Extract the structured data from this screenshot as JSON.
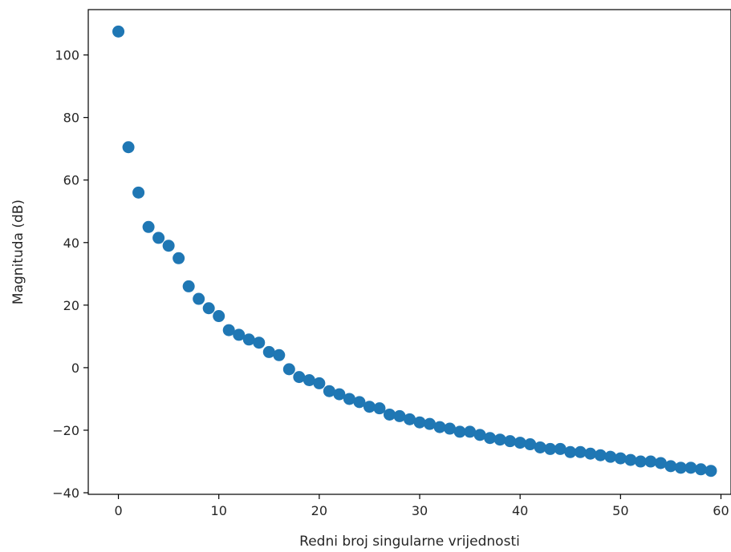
{
  "chart_data": {
    "type": "scatter",
    "xlabel": "Redni broj singularne vrijednosti",
    "ylabel": "Magnituda (dB)",
    "xlim": [
      -3,
      61
    ],
    "ylim": [
      -40.5,
      114.5
    ],
    "xticks": [
      0,
      10,
      20,
      30,
      40,
      50,
      60
    ],
    "yticks": [
      -40,
      -20,
      0,
      20,
      40,
      60,
      80,
      100
    ],
    "ytick_labels": [
      "−40",
      "−20",
      "0",
      "20",
      "40",
      "60",
      "80",
      "100"
    ],
    "marker_color": "#1f77b4",
    "grid": false,
    "series": [
      {
        "x": [
          0,
          1,
          2,
          3,
          4,
          5,
          6,
          7,
          8,
          9,
          10,
          11,
          12,
          13,
          14,
          15,
          16,
          17,
          18,
          19,
          20,
          21,
          22,
          23,
          24,
          25,
          26,
          27,
          28,
          29,
          30,
          31,
          32,
          33,
          34,
          35,
          36,
          37,
          38,
          39,
          40,
          41,
          42,
          43,
          44,
          45,
          46,
          47,
          48,
          49,
          50,
          51,
          52,
          53,
          54,
          55,
          56,
          57,
          58,
          59
        ],
        "y": [
          107.5,
          70.5,
          56.0,
          45.0,
          41.5,
          39.0,
          35.0,
          26.0,
          22.0,
          19.0,
          16.5,
          12.0,
          10.5,
          9.0,
          8.0,
          5.0,
          4.0,
          -0.5,
          -3.0,
          -4.0,
          -5.0,
          -7.5,
          -8.5,
          -10.0,
          -11.0,
          -12.5,
          -13.0,
          -15.0,
          -15.5,
          -16.5,
          -17.5,
          -18.0,
          -19.0,
          -19.5,
          -20.5,
          -20.5,
          -21.5,
          -22.5,
          -23.0,
          -23.5,
          -24.0,
          -24.5,
          -25.5,
          -26.0,
          -26.0,
          -27.0,
          -27.0,
          -27.5,
          -28.0,
          -28.5,
          -29.0,
          -29.5,
          -30.0,
          -30.0,
          -30.5,
          -31.5,
          -32.0,
          -32.0,
          -32.5,
          -33.0
        ]
      }
    ]
  }
}
